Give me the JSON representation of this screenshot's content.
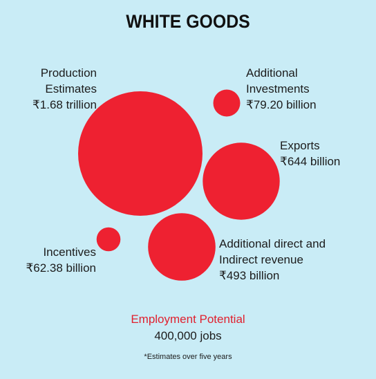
{
  "title": "WHITE GOODS",
  "colors": {
    "bubble": "#ee2131",
    "background": "#c9ecf6",
    "accent_text": "#e0202e"
  },
  "chart_data": {
    "type": "bubble",
    "title": "WHITE GOODS",
    "unit_note": "values in ₹ billion",
    "items": [
      {
        "key": "production",
        "lines": [
          "Production",
          "Estimates",
          "₹1.68 trillion"
        ],
        "value_billion": 1680
      },
      {
        "key": "investments",
        "lines": [
          "Additional",
          "Investments",
          "₹79.20 billion"
        ],
        "value_billion": 79.2
      },
      {
        "key": "exports",
        "lines": [
          "Exports",
          "₹644 billion"
        ],
        "value_billion": 644
      },
      {
        "key": "revenue",
        "lines": [
          "Additional direct and",
          "Indirect revenue",
          "₹493 billion"
        ],
        "value_billion": 493
      },
      {
        "key": "incentives",
        "lines": [
          "Incentives",
          "₹62.38 billion"
        ],
        "value_billion": 62.38
      }
    ]
  },
  "employment": {
    "title": "Employment Potential",
    "value": "400,000 jobs"
  },
  "note": "*Estimates over five years"
}
